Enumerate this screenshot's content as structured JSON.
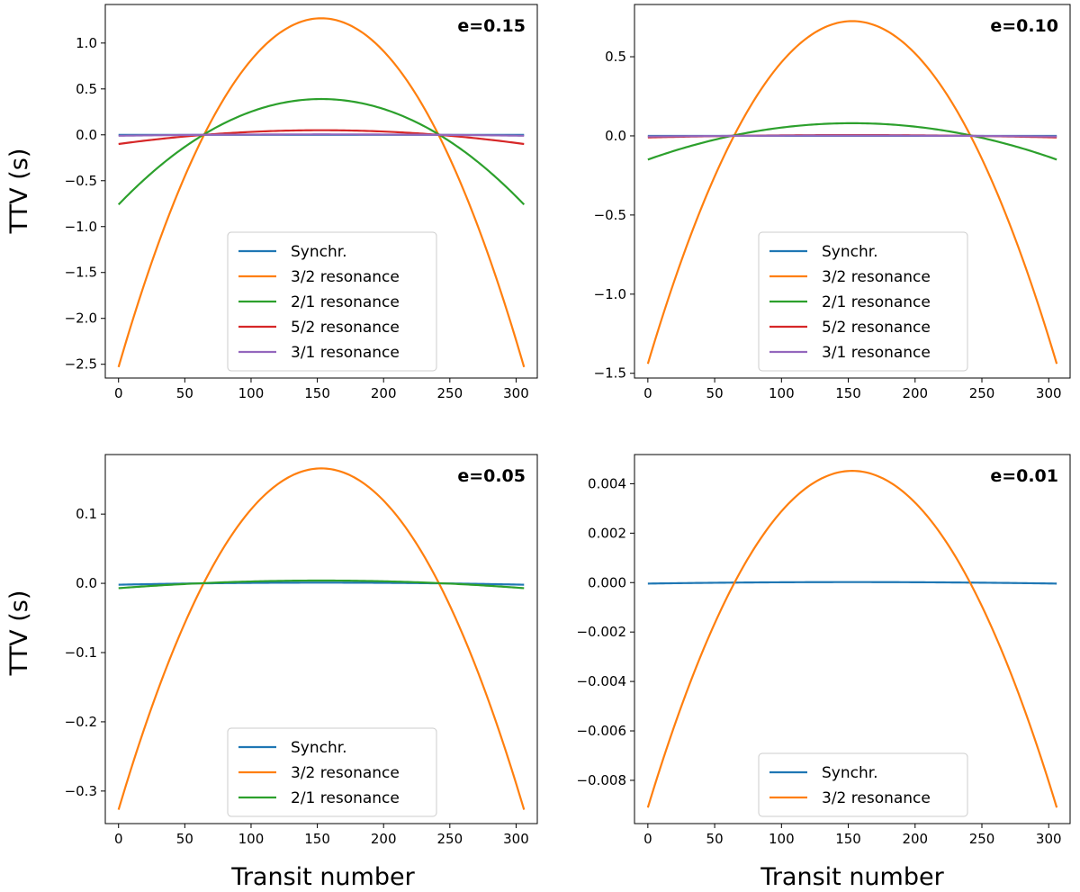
{
  "figure": {
    "ylabel": "TTV (s)",
    "xlabel": "Transit number"
  },
  "series_colors": {
    "Synchr.": "#1f77b4",
    "3/2 resonance": "#ff7f0e",
    "2/1 resonance": "#2ca02c",
    "5/2 resonance": "#d62728",
    "3/1 resonance": "#9467bd"
  },
  "chart_data": [
    {
      "type": "line",
      "panel": "top-left",
      "label": "e=0.15",
      "xlim": [
        -10,
        316
      ],
      "ylim": [
        -2.65,
        1.42
      ],
      "xticks": [
        0,
        50,
        100,
        150,
        200,
        250,
        300
      ],
      "yticks": [
        -2.5,
        -2.0,
        -1.5,
        -1.0,
        -0.5,
        0.0,
        0.5,
        1.0
      ],
      "ytick_labels": [
        "−2.5",
        "−2.0",
        "−1.5",
        "−1.0",
        "−0.5",
        "0.0",
        "0.5",
        "1.0"
      ],
      "x_range": [
        0,
        306
      ],
      "legend_loc": "lower-center",
      "series": [
        {
          "name": "Synchr.",
          "center": 153,
          "peak": 0.0,
          "zero_offset": 88,
          "end_value": 0.0
        },
        {
          "name": "3/2 resonance",
          "center": 153,
          "peak": 1.27,
          "zero_offset": 88,
          "end_value": -2.53
        },
        {
          "name": "2/1 resonance",
          "center": 153,
          "peak": 0.39,
          "zero_offset": 88,
          "end_value": -0.76
        },
        {
          "name": "5/2 resonance",
          "center": 153,
          "peak": 0.05,
          "zero_offset": 88,
          "end_value": -0.1
        },
        {
          "name": "3/1 resonance",
          "center": 153,
          "peak": 0.005,
          "zero_offset": 88,
          "end_value": -0.01
        }
      ]
    },
    {
      "type": "line",
      "panel": "top-right",
      "label": "e=0.10",
      "xlim": [
        -10,
        316
      ],
      "ylim": [
        -1.53,
        0.83
      ],
      "xticks": [
        0,
        50,
        100,
        150,
        200,
        250,
        300
      ],
      "yticks": [
        -1.5,
        -1.0,
        -0.5,
        0.0,
        0.5
      ],
      "ytick_labels": [
        "−1.5",
        "−1.0",
        "−0.5",
        "0.0",
        "0.5"
      ],
      "x_range": [
        0,
        306
      ],
      "legend_loc": "lower-center",
      "series": [
        {
          "name": "Synchr.",
          "center": 153,
          "peak": 0.0,
          "zero_offset": 88,
          "end_value": 0.0
        },
        {
          "name": "3/2 resonance",
          "center": 153,
          "peak": 0.725,
          "zero_offset": 88,
          "end_value": -1.44
        },
        {
          "name": "2/1 resonance",
          "center": 153,
          "peak": 0.08,
          "zero_offset": 88,
          "end_value": -0.15
        },
        {
          "name": "5/2 resonance",
          "center": 153,
          "peak": 0.005,
          "zero_offset": 88,
          "end_value": -0.01
        },
        {
          "name": "3/1 resonance",
          "center": 153,
          "peak": 0.002,
          "zero_offset": 88,
          "end_value": -0.004
        }
      ]
    },
    {
      "type": "line",
      "panel": "bottom-left",
      "label": "e=0.05",
      "xlim": [
        -10,
        316
      ],
      "ylim": [
        -0.347,
        0.186
      ],
      "xticks": [
        0,
        50,
        100,
        150,
        200,
        250,
        300
      ],
      "yticks": [
        -0.3,
        -0.2,
        -0.1,
        0.0,
        0.1
      ],
      "ytick_labels": [
        "−0.3",
        "−0.2",
        "−0.1",
        "0.0",
        "0.1"
      ],
      "x_range": [
        0,
        306
      ],
      "legend_loc": "lower-center",
      "series": [
        {
          "name": "Synchr.",
          "center": 153,
          "peak": 0.001,
          "zero_offset": 88,
          "end_value": -0.002
        },
        {
          "name": "3/2 resonance",
          "center": 153,
          "peak": 0.166,
          "zero_offset": 88,
          "end_value": -0.327
        },
        {
          "name": "2/1 resonance",
          "center": 153,
          "peak": 0.004,
          "zero_offset": 88,
          "end_value": -0.007
        }
      ]
    },
    {
      "type": "line",
      "panel": "bottom-right",
      "label": "e=0.01",
      "xlim": [
        -10,
        316
      ],
      "ylim": [
        -0.00975,
        0.00518
      ],
      "xticks": [
        0,
        50,
        100,
        150,
        200,
        250,
        300
      ],
      "yticks": [
        -0.008,
        -0.006,
        -0.004,
        -0.002,
        0.0,
        0.002,
        0.004
      ],
      "ytick_labels": [
        "−0.008",
        "−0.006",
        "−0.004",
        "−0.002",
        "0.000",
        "0.002",
        "0.004"
      ],
      "x_range": [
        0,
        306
      ],
      "legend_loc": "lower-center",
      "series": [
        {
          "name": "Synchr.",
          "center": 153,
          "peak": 2e-05,
          "zero_offset": 88,
          "end_value": -4e-05
        },
        {
          "name": "3/2 resonance",
          "center": 153,
          "peak": 0.00452,
          "zero_offset": 88,
          "end_value": -0.0091
        }
      ]
    }
  ]
}
